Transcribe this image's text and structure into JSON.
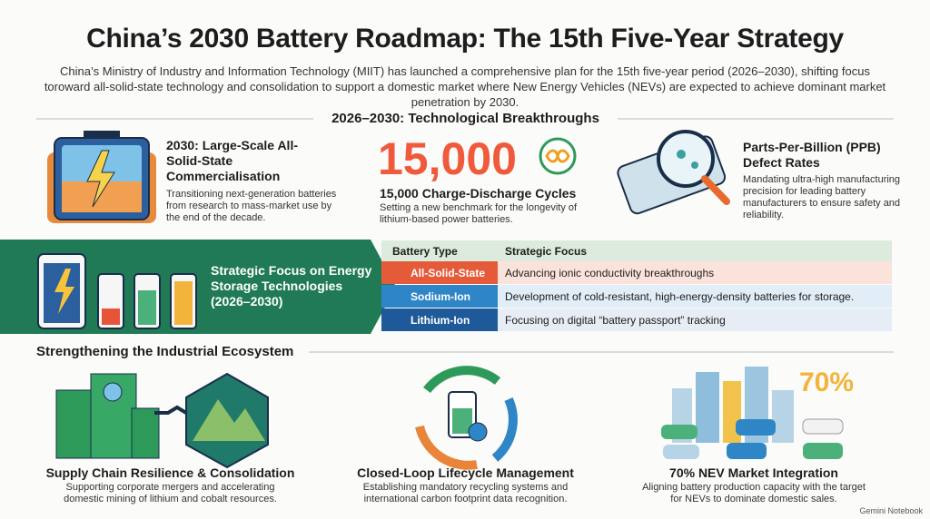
{
  "header": {
    "title": "China’s 2030 Battery Roadmap: The 15th Five-Year Strategy",
    "subtitle": "China’s Ministry of Industry and Information Technology (MIIT) has launched a comprehensive plan for the 15th five-year period (2026–2030), shifting focus toroward all-solid-state technology and consolidation to support a domestic market where New Energy Vehicles (NEVs) are expected to achieve dominant market penetration by 2030."
  },
  "breakthroughs": {
    "heading": "2026–2030: Technological Breakthroughs",
    "items": [
      {
        "title": "2030: Large-Scale All-Solid-State Commercialisation",
        "text": "Transitioning next-generation batteries from research to mass-market use by the end of the decade."
      },
      {
        "figure": "15,000",
        "title": "15,000 Charge-Discharge Cycles",
        "text": "Setting a new benchmark for the longevity of lithium-based power batteries."
      },
      {
        "title": "Parts-Per-Billion (PPB) Defect Rates",
        "text": "Mandating ultra-high manufacturing precision for leading battery manufacturers to ensure safety and reliability."
      }
    ]
  },
  "focus": {
    "title": "Strategic Focus on Energy Storage Technologies (2026–2030)",
    "table": {
      "headers": [
        "Battery Type",
        "Strategic Focus"
      ],
      "rows": [
        [
          "All-Solid-State",
          "Advancing ionic conductivity breakthroughs"
        ],
        [
          "Sodium-Ion",
          "Development of cold-resistant, high-energy-density batteries for storage."
        ],
        [
          "Lithium-Ion",
          "Focusing on digital “battery passport” tracking"
        ]
      ]
    }
  },
  "ecosystem": {
    "heading": "Strengthening the Industrial Ecosystem",
    "items": [
      {
        "title": "Supply Chain Resilience & Consolidation",
        "text": "Supporting corporate mergers and accelerating domestic mining of lithium and cobalt resources."
      },
      {
        "title": "Closed-Loop Lifecycle Management",
        "text": "Establishing mandatory recycling systems and international carbon footprint data recognition."
      },
      {
        "figure": "70%",
        "title": "70% NEV Market Integration",
        "text": "Aligning battery production capacity with the target for NEVs to dominate domestic sales."
      }
    ]
  },
  "footer": {
    "badge": "Gemini Notebook"
  }
}
